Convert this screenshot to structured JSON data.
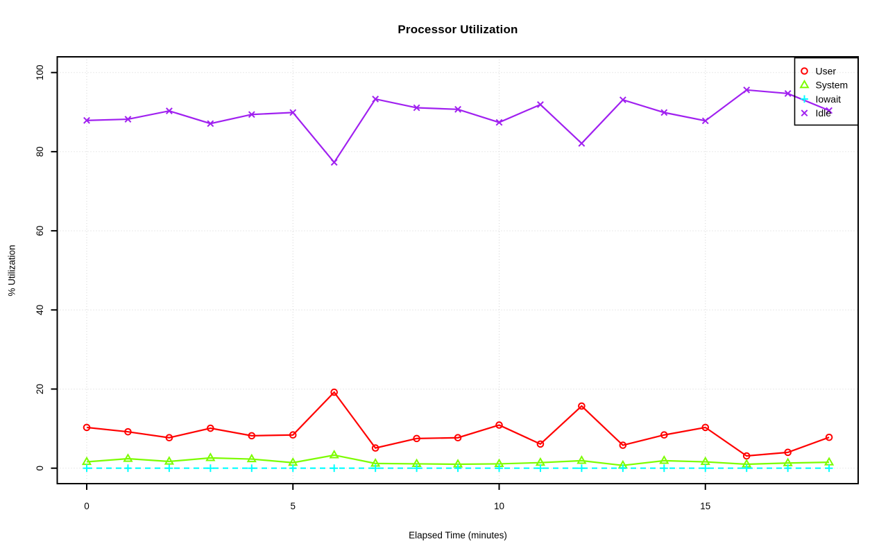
{
  "page": {
    "background": "#ffffff",
    "text_color": "#000000",
    "grid_color": "#d3d3d3",
    "axis_color": "#000000"
  },
  "chart_data": {
    "type": "line",
    "title": "Processor Utilization",
    "xlabel": "Elapsed Time (minutes)",
    "ylabel": "% Utilization",
    "x": [
      0,
      1,
      2,
      3,
      4,
      5,
      6,
      7,
      8,
      9,
      10,
      11,
      12,
      13,
      14,
      15,
      16,
      17,
      18
    ],
    "xticks": [
      0,
      5,
      10,
      15
    ],
    "yticks": [
      0,
      20,
      40,
      60,
      80,
      100
    ],
    "xlim": [
      0,
      18
    ],
    "ylim": [
      0,
      100
    ],
    "grid": true,
    "grid_style": "dotted",
    "legend_position": "top-right",
    "legend_border": true,
    "series": [
      {
        "name": "User",
        "color": "#ff0000",
        "marker": "circle",
        "line_style": "solid",
        "values": [
          10.3,
          9.2,
          7.7,
          10.1,
          8.2,
          8.4,
          19.2,
          5.1,
          7.5,
          7.7,
          10.9,
          6.1,
          15.7,
          5.8,
          8.4,
          10.3,
          3.1,
          4.0,
          7.8
        ]
      },
      {
        "name": "System",
        "color": "#7cfc00",
        "marker": "triangle",
        "line_style": "solid",
        "values": [
          1.6,
          2.4,
          1.7,
          2.6,
          2.3,
          1.4,
          3.3,
          1.2,
          1.1,
          1.0,
          1.1,
          1.4,
          1.9,
          0.7,
          1.9,
          1.6,
          1.0,
          1.3,
          1.5
        ]
      },
      {
        "name": "Iowait",
        "color": "#00ffff",
        "marker": "plus",
        "line_style": "dashed",
        "values": [
          0,
          0,
          0,
          0,
          0,
          0,
          0,
          0,
          0,
          0,
          0,
          0,
          0,
          0,
          0,
          0,
          0,
          0,
          0
        ]
      },
      {
        "name": "Idle",
        "color": "#a020f0",
        "marker": "x",
        "line_style": "solid",
        "values": [
          87.9,
          88.2,
          90.3,
          87.1,
          89.4,
          89.9,
          77.3,
          93.3,
          91.1,
          90.7,
          87.4,
          91.9,
          82.1,
          93.1,
          89.9,
          87.8,
          95.6,
          94.7,
          90.4
        ]
      }
    ]
  }
}
